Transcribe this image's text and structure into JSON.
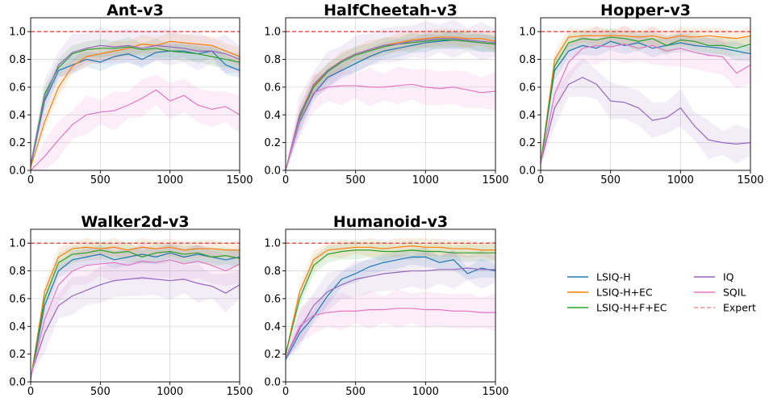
{
  "chart_data": {
    "type": "line",
    "colors": {
      "LSIQ-H": "#1f77b4",
      "LSIQ-H+EC": "#ff7f0e",
      "LSIQ-H+F+EC": "#2ca02c",
      "IQ": "#9467bd",
      "SQIL": "#e377c2",
      "Expert": "#d62728"
    },
    "legend": {
      "placement": "center-right",
      "entries": [
        "LSIQ-H",
        "LSIQ-H+EC",
        "LSIQ-H+F+EC",
        "IQ",
        "SQIL",
        "Expert"
      ]
    },
    "shared": {
      "x": [
        0,
        100,
        200,
        300,
        400,
        500,
        600,
        700,
        800,
        900,
        1000,
        1100,
        1200,
        1300,
        1400,
        1500
      ],
      "xlim": [
        0,
        1500
      ],
      "ylim": [
        0,
        1.1
      ],
      "xticks": [
        "0",
        "500",
        "1000",
        "1500"
      ],
      "yticks": [
        "0.0",
        "0.2",
        "0.4",
        "0.6",
        "0.8",
        "1.0"
      ],
      "expert_level": 1.0,
      "grid": true
    },
    "panels": [
      {
        "title": "Ant-v3",
        "series": [
          {
            "name": "LSIQ-H",
            "values": [
              0.03,
              0.5,
              0.72,
              0.76,
              0.8,
              0.78,
              0.82,
              0.84,
              0.8,
              0.85,
              0.86,
              0.86,
              0.84,
              0.86,
              0.76,
              0.72
            ]
          },
          {
            "name": "LSIQ-H+EC",
            "values": [
              0.02,
              0.35,
              0.6,
              0.75,
              0.82,
              0.84,
              0.86,
              0.88,
              0.91,
              0.9,
              0.93,
              0.92,
              0.91,
              0.9,
              0.86,
              0.82
            ]
          },
          {
            "name": "LSIQ-H+F+EC",
            "values": [
              0.04,
              0.55,
              0.74,
              0.84,
              0.87,
              0.88,
              0.88,
              0.89,
              0.87,
              0.88,
              0.86,
              0.85,
              0.84,
              0.82,
              0.8,
              0.78
            ]
          },
          {
            "name": "IQ",
            "values": [
              0.04,
              0.52,
              0.76,
              0.85,
              0.88,
              0.9,
              0.89,
              0.9,
              0.88,
              0.9,
              0.89,
              0.88,
              0.86,
              0.86,
              0.84,
              0.8
            ]
          },
          {
            "name": "SQIL",
            "values": [
              0.0,
              0.1,
              0.22,
              0.33,
              0.4,
              0.42,
              0.43,
              0.47,
              0.52,
              0.58,
              0.5,
              0.54,
              0.47,
              0.44,
              0.46,
              0.4
            ]
          }
        ]
      },
      {
        "title": "HalfCheetah-v3",
        "series": [
          {
            "name": "LSIQ-H",
            "values": [
              0.0,
              0.35,
              0.55,
              0.67,
              0.72,
              0.77,
              0.82,
              0.86,
              0.88,
              0.9,
              0.92,
              0.93,
              0.94,
              0.93,
              0.92,
              0.91
            ]
          },
          {
            "name": "LSIQ-H+EC",
            "values": [
              0.0,
              0.4,
              0.61,
              0.72,
              0.79,
              0.84,
              0.87,
              0.9,
              0.92,
              0.94,
              0.95,
              0.96,
              0.96,
              0.95,
              0.95,
              0.93
            ]
          },
          {
            "name": "LSIQ-H+F+EC",
            "values": [
              0.0,
              0.38,
              0.6,
              0.71,
              0.78,
              0.83,
              0.86,
              0.89,
              0.91,
              0.92,
              0.93,
              0.94,
              0.94,
              0.93,
              0.92,
              0.91
            ]
          },
          {
            "name": "IQ",
            "values": [
              0.0,
              0.4,
              0.62,
              0.72,
              0.79,
              0.84,
              0.87,
              0.9,
              0.91,
              0.93,
              0.94,
              0.95,
              0.95,
              0.94,
              0.93,
              0.92
            ]
          },
          {
            "name": "SQIL",
            "values": [
              0.0,
              0.36,
              0.56,
              0.6,
              0.61,
              0.61,
              0.6,
              0.6,
              0.61,
              0.62,
              0.6,
              0.59,
              0.6,
              0.58,
              0.56,
              0.57
            ]
          }
        ]
      },
      {
        "title": "Hopper-v3",
        "series": [
          {
            "name": "LSIQ-H",
            "values": [
              0.05,
              0.72,
              0.86,
              0.9,
              0.88,
              0.93,
              0.9,
              0.92,
              0.88,
              0.9,
              0.92,
              0.9,
              0.89,
              0.88,
              0.86,
              0.84
            ]
          },
          {
            "name": "LSIQ-H+EC",
            "values": [
              0.05,
              0.8,
              0.96,
              0.97,
              0.97,
              0.97,
              0.97,
              0.96,
              0.97,
              0.95,
              0.97,
              0.96,
              0.97,
              0.96,
              0.95,
              0.97
            ]
          },
          {
            "name": "LSIQ-H+F+EC",
            "values": [
              0.05,
              0.75,
              0.92,
              0.95,
              0.94,
              0.96,
              0.95,
              0.93,
              0.95,
              0.9,
              0.94,
              0.93,
              0.9,
              0.9,
              0.88,
              0.91
            ]
          },
          {
            "name": "IQ",
            "values": [
              0.05,
              0.45,
              0.62,
              0.67,
              0.62,
              0.5,
              0.49,
              0.45,
              0.36,
              0.38,
              0.45,
              0.32,
              0.22,
              0.2,
              0.19,
              0.2
            ]
          },
          {
            "name": "SQIL",
            "values": [
              0.05,
              0.55,
              0.78,
              0.88,
              0.9,
              0.89,
              0.91,
              0.88,
              0.9,
              0.86,
              0.88,
              0.85,
              0.83,
              0.82,
              0.7,
              0.76
            ]
          }
        ]
      },
      {
        "title": "Walker2d-v3",
        "series": [
          {
            "name": "LSIQ-H",
            "values": [
              0.02,
              0.55,
              0.8,
              0.88,
              0.9,
              0.92,
              0.88,
              0.9,
              0.92,
              0.9,
              0.93,
              0.9,
              0.92,
              0.9,
              0.88,
              0.9
            ]
          },
          {
            "name": "LSIQ-H+EC",
            "values": [
              0.02,
              0.65,
              0.9,
              0.96,
              0.97,
              0.96,
              0.97,
              0.95,
              0.97,
              0.96,
              0.97,
              0.95,
              0.96,
              0.96,
              0.95,
              0.95
            ]
          },
          {
            "name": "LSIQ-H+F+EC",
            "values": [
              0.02,
              0.6,
              0.86,
              0.92,
              0.93,
              0.95,
              0.93,
              0.94,
              0.9,
              0.93,
              0.94,
              0.92,
              0.93,
              0.9,
              0.91,
              0.89
            ]
          },
          {
            "name": "IQ",
            "values": [
              0.05,
              0.35,
              0.55,
              0.62,
              0.66,
              0.7,
              0.73,
              0.74,
              0.75,
              0.74,
              0.73,
              0.74,
              0.71,
              0.69,
              0.64,
              0.7
            ]
          },
          {
            "name": "SQIL",
            "values": [
              0.03,
              0.45,
              0.7,
              0.8,
              0.84,
              0.85,
              0.86,
              0.84,
              0.87,
              0.86,
              0.88,
              0.85,
              0.87,
              0.84,
              0.8,
              0.85
            ]
          }
        ]
      },
      {
        "title": "Humanoid-v3",
        "series": [
          {
            "name": "LSIQ-H",
            "values": [
              0.16,
              0.35,
              0.47,
              0.62,
              0.74,
              0.78,
              0.83,
              0.86,
              0.88,
              0.9,
              0.9,
              0.86,
              0.88,
              0.78,
              0.82,
              0.8
            ]
          },
          {
            "name": "LSIQ-H+EC",
            "values": [
              0.2,
              0.65,
              0.88,
              0.95,
              0.96,
              0.97,
              0.97,
              0.96,
              0.97,
              0.98,
              0.97,
              0.97,
              0.96,
              0.96,
              0.95,
              0.95
            ]
          },
          {
            "name": "LSIQ-H+F+EC",
            "values": [
              0.2,
              0.6,
              0.84,
              0.92,
              0.94,
              0.95,
              0.95,
              0.94,
              0.94,
              0.95,
              0.94,
              0.94,
              0.93,
              0.93,
              0.93,
              0.93
            ]
          },
          {
            "name": "IQ",
            "values": [
              0.18,
              0.38,
              0.55,
              0.65,
              0.7,
              0.74,
              0.76,
              0.78,
              0.79,
              0.8,
              0.8,
              0.81,
              0.81,
              0.82,
              0.81,
              0.81
            ]
          },
          {
            "name": "SQIL",
            "values": [
              0.18,
              0.4,
              0.48,
              0.5,
              0.51,
              0.51,
              0.52,
              0.52,
              0.53,
              0.53,
              0.52,
              0.52,
              0.51,
              0.51,
              0.5,
              0.5
            ]
          }
        ]
      }
    ]
  }
}
